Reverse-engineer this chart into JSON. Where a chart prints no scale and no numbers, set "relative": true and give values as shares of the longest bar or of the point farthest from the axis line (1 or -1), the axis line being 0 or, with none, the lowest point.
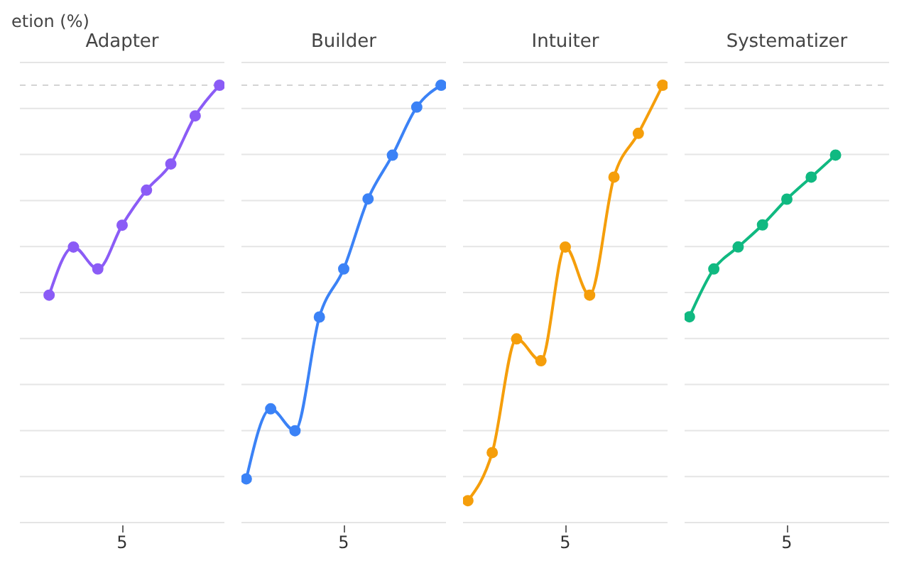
{
  "chart_data": [
    {
      "type": "line",
      "title": "Adapter",
      "ylabel": "etion (%)",
      "categories": [
        null,
        null,
        null,
        null,
        null,
        null,
        null,
        null,
        null
      ],
      "relative": true,
      "marker": "circle",
      "grid": "y",
      "annotations": [
        "5"
      ],
      "ref_lines": [
        {
          "axis": "y",
          "value": 1,
          "color": "#d4d4d4",
          "line_style": "dashed"
        }
      ],
      "series": [
        {
          "color": "#8b5cf6",
          "values": [
            null,
            0.52,
            0.63,
            0.58,
            0.68,
            0.76,
            0.82,
            0.93,
            1
          ]
        }
      ]
    },
    {
      "type": "line",
      "title": "Builder",
      "categories": [
        null,
        null,
        null,
        null,
        null,
        null,
        null,
        null,
        null
      ],
      "relative": true,
      "marker": "circle",
      "grid": "y",
      "annotations": [
        "5"
      ],
      "ref_lines": [
        {
          "axis": "y",
          "value": 1,
          "color": "#d4d4d4",
          "line_style": "dashed"
        }
      ],
      "series": [
        {
          "color": "#3b82f6",
          "values": [
            0.1,
            0.26,
            0.21,
            0.47,
            0.58,
            0.74,
            0.84,
            0.95,
            1
          ]
        }
      ]
    },
    {
      "type": "line",
      "title": "Intuiter",
      "categories": [
        null,
        null,
        null,
        null,
        null,
        null,
        null,
        null,
        null
      ],
      "relative": true,
      "marker": "circle",
      "grid": "y",
      "annotations": [
        "5"
      ],
      "ref_lines": [
        {
          "axis": "y",
          "value": 1,
          "color": "#d4d4d4",
          "line_style": "dashed"
        }
      ],
      "series": [
        {
          "color": "#f59e0b",
          "values": [
            0.05,
            0.16,
            0.42,
            0.37,
            0.63,
            0.52,
            0.79,
            0.89,
            1
          ]
        }
      ]
    },
    {
      "type": "line",
      "title": "Systematizer",
      "categories": [
        null,
        null,
        null,
        null,
        null,
        null,
        null,
        null,
        null
      ],
      "relative": true,
      "marker": "circle",
      "grid": "y",
      "annotations": [
        "5"
      ],
      "ref_lines": [
        {
          "axis": "y",
          "value": 1.19,
          "color": "#d4d4d4",
          "line_style": "dashed"
        }
      ],
      "series": [
        {
          "color": "#10b981",
          "values": [
            0.56,
            0.69,
            0.75,
            0.81,
            0.88,
            0.94,
            1,
            null,
            null
          ]
        }
      ]
    }
  ]
}
